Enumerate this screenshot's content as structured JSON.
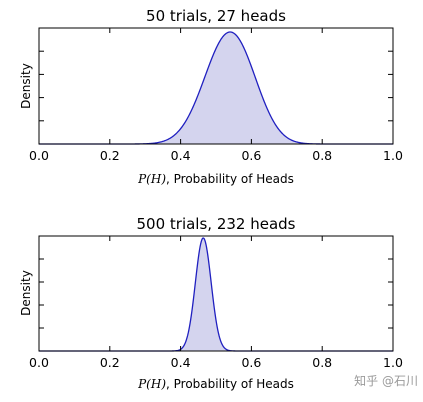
{
  "chart_data": [
    {
      "type": "area",
      "title": "50 trials, 27 heads",
      "xlabel_prefix": "P(H)",
      "xlabel_suffix": ", Probability of Heads",
      "ylabel": "Density",
      "xlim": [
        0.0,
        1.0
      ],
      "xticks": [
        0.0,
        0.2,
        0.4,
        0.6,
        0.8,
        1.0
      ],
      "xtick_labels": [
        "0.0",
        "0.2",
        "0.4",
        "0.6",
        "0.8",
        "1.0"
      ],
      "yticks_count": 6,
      "yticks_labeled": false,
      "distribution": {
        "kind": "beta",
        "alpha": 28,
        "beta": 24
      },
      "line_color": "#2020c0",
      "fill_color": "#d4d4ee"
    },
    {
      "type": "area",
      "title": "500 trials, 232 heads",
      "xlabel_prefix": "P(H)",
      "xlabel_suffix": ", Probability of Heads",
      "ylabel": "Density",
      "xlim": [
        0.0,
        1.0
      ],
      "xticks": [
        0.0,
        0.2,
        0.4,
        0.6,
        0.8,
        1.0
      ],
      "xtick_labels": [
        "0.0",
        "0.2",
        "0.4",
        "0.6",
        "0.8",
        "1.0"
      ],
      "yticks_count": 6,
      "yticks_labeled": false,
      "distribution": {
        "kind": "beta",
        "alpha": 233,
        "beta": 269
      },
      "line_color": "#2020c0",
      "fill_color": "#d4d4ee"
    }
  ],
  "watermark": "知乎 @石川"
}
